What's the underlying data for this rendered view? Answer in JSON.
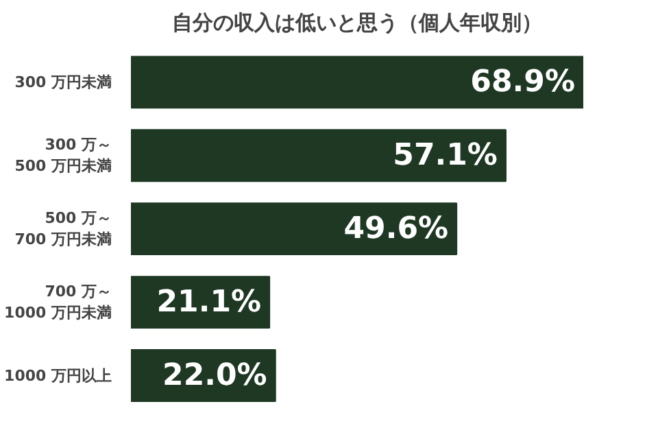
{
  "chart_data": {
    "type": "bar",
    "orientation": "horizontal",
    "title": "自分の収入は低いと思う（個人年収別）",
    "categories": [
      "300 万円未満",
      "300 万～\n500 万円未満",
      "500 万～\n700 万円未満",
      "700 万～\n1000 万円未満",
      "1000 万円以上"
    ],
    "values": [
      68.9,
      57.1,
      49.6,
      21.1,
      22.0
    ],
    "color": "#1e3823",
    "value_labels": [
      "68.9%",
      "57.1%",
      "49.6%",
      "21.1%",
      "22.0%"
    ],
    "grid": false
  }
}
